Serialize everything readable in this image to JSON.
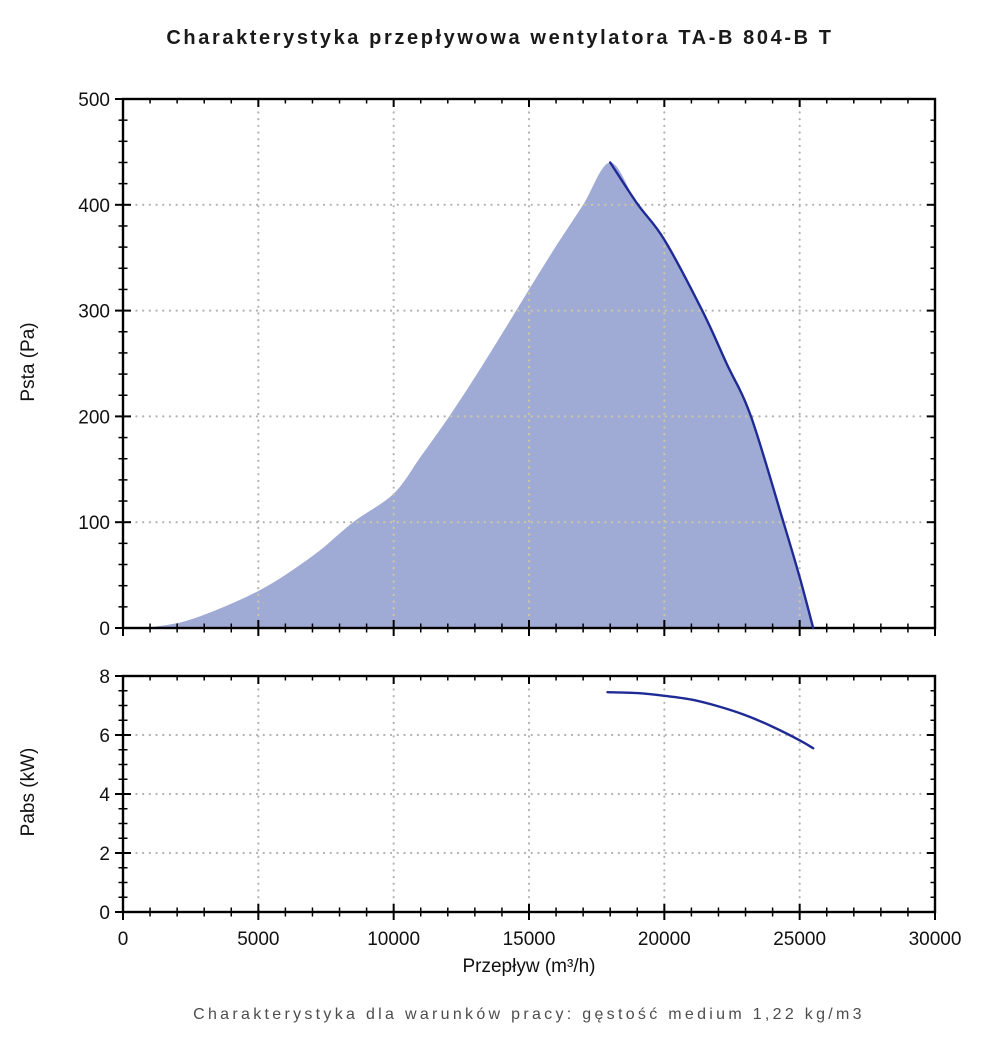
{
  "title": "Charakterystyka przepływowa wentylatora TA-B 804-B T",
  "caption": "Charakterystyka dla warunków pracy: gęstość medium 1,22 kg/m3",
  "colors": {
    "area_fill": "#a0abd5",
    "curve_line": "#1f2b94",
    "frame": "#000000",
    "ticks": "#000000",
    "grid": "#b3b3b3",
    "grid_over_fill": "#cdc8a2",
    "tick_text": "#111111",
    "caption_text": "#4d4d4d"
  },
  "chart_data": [
    {
      "type": "area",
      "name": "pressure-curve",
      "title": "",
      "ylabel": "Psta (Pa)",
      "xlabel": "",
      "xlim": [
        0,
        30000
      ],
      "ylim": [
        0,
        500
      ],
      "xticks": [
        0,
        5000,
        10000,
        15000,
        20000,
        25000,
        30000
      ],
      "yticks": [
        0,
        100,
        200,
        300,
        400,
        500
      ],
      "x_minor_step": 1000,
      "y_minor_step": 20,
      "grid": "dotted",
      "show_x_tick_labels": false,
      "area_points": [
        [
          800,
          0
        ],
        [
          2500,
          8
        ],
        [
          5000,
          35
        ],
        [
          7000,
          68
        ],
        [
          8500,
          100
        ],
        [
          10000,
          127
        ],
        [
          11000,
          162
        ],
        [
          12000,
          198
        ],
        [
          13000,
          237
        ],
        [
          14000,
          278
        ],
        [
          15000,
          320
        ],
        [
          16000,
          361
        ],
        [
          17000,
          400
        ],
        [
          18000,
          440
        ]
      ],
      "line_points": [
        [
          18000,
          440
        ],
        [
          19000,
          401
        ],
        [
          20000,
          367
        ],
        [
          21400,
          300
        ],
        [
          22300,
          250
        ],
        [
          23200,
          200
        ],
        [
          24400,
          100
        ],
        [
          25000,
          48
        ],
        [
          25500,
          0
        ]
      ],
      "peak": {
        "x": 18000,
        "y": 440
      },
      "x_at_zero_pressure": 25500
    },
    {
      "type": "line",
      "name": "power-curve",
      "title": "",
      "ylabel": "Pabs (kW)",
      "xlabel": "Przepływ (m³/h)",
      "xlim": [
        0,
        30000
      ],
      "ylim": [
        0,
        8
      ],
      "xticks": [
        0,
        5000,
        10000,
        15000,
        20000,
        25000,
        30000
      ],
      "yticks": [
        0,
        2,
        4,
        6,
        8
      ],
      "x_minor_step": 1000,
      "y_minor_step": 0.5,
      "grid": "dotted",
      "show_x_tick_labels": true,
      "points": [
        [
          17900,
          7.45
        ],
        [
          19000,
          7.42
        ],
        [
          20000,
          7.33
        ],
        [
          21000,
          7.2
        ],
        [
          22000,
          6.97
        ],
        [
          23000,
          6.67
        ],
        [
          24000,
          6.28
        ],
        [
          25000,
          5.82
        ],
        [
          25500,
          5.55
        ]
      ]
    }
  ]
}
